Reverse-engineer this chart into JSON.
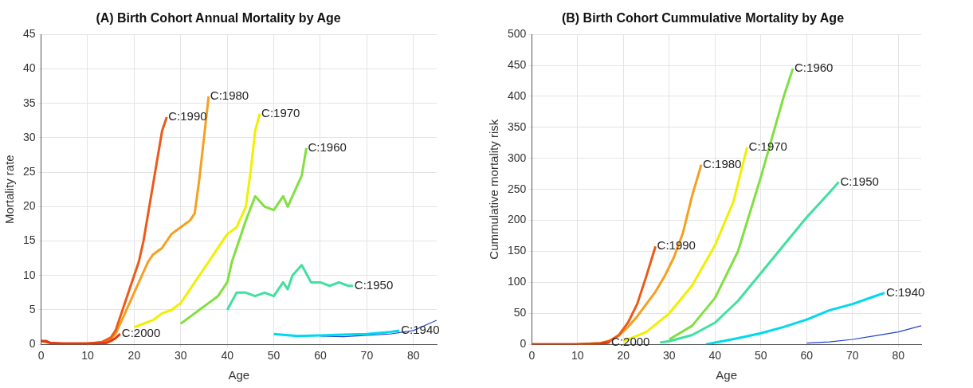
{
  "chart_data": [
    {
      "type": "line",
      "title": "(A) Birth Cohort Annual Mortality by Age",
      "xlabel": "Age",
      "ylabel": "Mortality rate",
      "xlim": [
        0,
        85
      ],
      "xticks": [
        0,
        10,
        20,
        30,
        40,
        50,
        60,
        70,
        80
      ],
      "ylim": [
        0,
        45
      ],
      "yticks": [
        0,
        5,
        10,
        15,
        20,
        25,
        30,
        35,
        40,
        45
      ],
      "grid": true,
      "legend": false,
      "marker": "none",
      "line_style": "solid",
      "series": [
        {
          "name": "C:2000",
          "color": "#e03a10",
          "x": [
            0,
            1,
            2,
            4,
            6,
            8,
            10,
            12,
            14,
            15,
            16,
            17
          ],
          "values": [
            0.5,
            0.5,
            0.2,
            0.1,
            0.1,
            0.1,
            0.1,
            0.1,
            0.2,
            0.5,
            0.9,
            1.5
          ]
        },
        {
          "name": "C:1990",
          "color": "#ec5a18",
          "x": [
            0,
            2,
            5,
            10,
            13,
            15,
            16,
            17,
            18,
            19,
            20,
            21,
            22,
            23,
            24,
            25,
            26,
            27
          ],
          "values": [
            0.5,
            0.2,
            0.1,
            0.1,
            0.3,
            1,
            2,
            4,
            6,
            8,
            10,
            12,
            15,
            19,
            23,
            27,
            31,
            33
          ]
        },
        {
          "name": "C:1980",
          "color": "#f5a020",
          "x": [
            10,
            13,
            15,
            16,
            17,
            18,
            19,
            20,
            21,
            22,
            23,
            24,
            25,
            26,
            27,
            28,
            29,
            30,
            31,
            32,
            33,
            34,
            35,
            36
          ],
          "values": [
            0.1,
            0.3,
            0.8,
            1.5,
            3,
            4.5,
            6,
            7.5,
            9,
            10.5,
            12,
            13,
            13.5,
            14,
            15,
            16,
            16.5,
            17,
            17.5,
            18,
            19,
            24,
            30,
            36
          ]
        },
        {
          "name": "C:1970",
          "color": "#f0f000",
          "x": [
            20,
            22,
            24,
            26,
            28,
            30,
            32,
            34,
            36,
            38,
            40,
            42,
            44,
            45,
            46,
            47
          ],
          "values": [
            2.5,
            3,
            3.5,
            4.5,
            5,
            6,
            8,
            10,
            12,
            14,
            16,
            17,
            20,
            25,
            31,
            33.5
          ]
        },
        {
          "name": "C:1960",
          "color": "#80e040",
          "x": [
            30,
            32,
            34,
            36,
            38,
            40,
            41,
            42,
            44,
            46,
            48,
            50,
            52,
            53,
            55,
            56,
            57
          ],
          "values": [
            3,
            4,
            5,
            6,
            7,
            9,
            12,
            14,
            18,
            21.5,
            20,
            19.5,
            21.5,
            20,
            23,
            24.5,
            28.5
          ]
        },
        {
          "name": "C:1950",
          "color": "#40e0a0",
          "x": [
            40,
            42,
            44,
            46,
            48,
            50,
            52,
            53,
            54,
            56,
            58,
            60,
            62,
            64,
            66,
            67
          ],
          "values": [
            5,
            7.5,
            7.5,
            7,
            7.5,
            7,
            9,
            8,
            10,
            11.5,
            9,
            9,
            8.5,
            9,
            8.5,
            8.5
          ]
        },
        {
          "name": "C:1940",
          "color": "#00d8f0",
          "x": [
            50,
            55,
            60,
            65,
            70,
            75,
            77
          ],
          "values": [
            1.5,
            1.2,
            1.3,
            1.4,
            1.5,
            1.8,
            2
          ]
        },
        {
          "color": "#2040d0",
          "x": [
            60,
            65,
            70,
            75,
            80,
            85
          ],
          "values": [
            1.2,
            1.1,
            1.3,
            1.5,
            2,
            3.5
          ]
        }
      ]
    },
    {
      "type": "line",
      "title": "(B) Birth Cohort Cummulative Mortality by Age",
      "xlabel": "Age",
      "ylabel": "Cummulative mortality risk",
      "xlim": [
        0,
        85
      ],
      "xticks": [
        0,
        10,
        20,
        30,
        40,
        50,
        60,
        70,
        80
      ],
      "ylim": [
        0,
        500
      ],
      "yticks": [
        0,
        50,
        100,
        150,
        200,
        250,
        300,
        350,
        400,
        450,
        500
      ],
      "grid": true,
      "legend": false,
      "marker": "none",
      "line_style": "solid",
      "series": [
        {
          "name": "C:2000",
          "color": "#e03a10",
          "x": [
            0,
            5,
            10,
            15,
            17
          ],
          "values": [
            0,
            0,
            0,
            1,
            3
          ]
        },
        {
          "name": "C:1990",
          "color": "#ec5a18",
          "x": [
            0,
            10,
            15,
            17,
            19,
            21,
            23,
            25,
            27
          ],
          "values": [
            0,
            0,
            2,
            5,
            15,
            35,
            65,
            110,
            158
          ]
        },
        {
          "name": "C:1980",
          "color": "#f5a020",
          "x": [
            10,
            15,
            17,
            19,
            21,
            23,
            25,
            27,
            29,
            31,
            33,
            35,
            37
          ],
          "values": [
            0,
            2,
            6,
            14,
            28,
            45,
            65,
            85,
            110,
            140,
            180,
            240,
            290
          ]
        },
        {
          "name": "C:1970",
          "color": "#f0f000",
          "x": [
            20,
            25,
            30,
            35,
            40,
            44,
            47
          ],
          "values": [
            5,
            20,
            50,
            95,
            160,
            230,
            318
          ]
        },
        {
          "name": "C:1960",
          "color": "#80e040",
          "x": [
            30,
            35,
            40,
            45,
            50,
            55,
            57
          ],
          "values": [
            8,
            30,
            75,
            150,
            270,
            400,
            445
          ]
        },
        {
          "name": "C:1950",
          "color": "#40e0a0",
          "x": [
            28,
            30,
            35,
            40,
            45,
            50,
            55,
            60,
            65,
            67
          ],
          "values": [
            3,
            5,
            15,
            35,
            70,
            115,
            160,
            205,
            245,
            262
          ]
        },
        {
          "name": "C:1940",
          "color": "#00d8f0",
          "x": [
            38,
            45,
            50,
            55,
            60,
            65,
            70,
            75,
            77
          ],
          "values": [
            0,
            10,
            18,
            28,
            40,
            55,
            65,
            78,
            83
          ]
        },
        {
          "color": "#2040d0",
          "x": [
            60,
            65,
            70,
            75,
            80,
            85
          ],
          "values": [
            2,
            4,
            8,
            14,
            20,
            30
          ]
        }
      ]
    }
  ]
}
